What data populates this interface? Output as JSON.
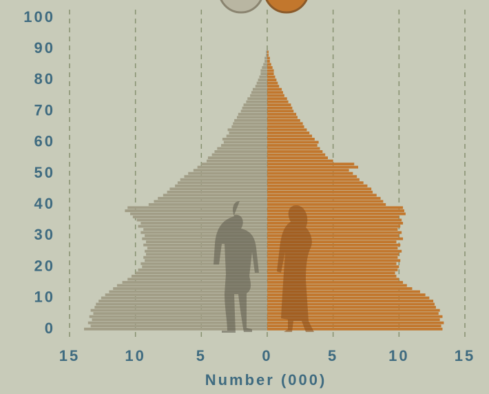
{
  "chart_data": {
    "type": "pyramid",
    "x_label": "Number (000)",
    "ages": [
      0,
      1,
      2,
      3,
      4,
      5,
      6,
      7,
      8,
      9,
      10,
      11,
      12,
      13,
      14,
      15,
      16,
      17,
      18,
      19,
      20,
      21,
      22,
      23,
      24,
      25,
      26,
      27,
      28,
      29,
      30,
      31,
      32,
      33,
      34,
      35,
      36,
      37,
      38,
      39,
      40,
      41,
      42,
      43,
      44,
      45,
      46,
      47,
      48,
      49,
      50,
      51,
      52,
      53,
      54,
      55,
      56,
      57,
      58,
      59,
      60,
      61,
      62,
      63,
      64,
      65,
      66,
      67,
      68,
      69,
      70,
      71,
      72,
      73,
      74,
      75,
      76,
      77,
      78,
      79,
      80,
      81,
      82,
      83,
      84,
      85,
      86,
      87,
      88,
      89
    ],
    "series": [
      {
        "color": "#a19d86",
        "values": [
          13.9,
          13.4,
          13.6,
          13.3,
          13.5,
          13.2,
          13.4,
          13.1,
          13.0,
          12.8,
          12.6,
          12.3,
          12.0,
          11.7,
          11.4,
          11.0,
          10.6,
          10.3,
          10.0,
          9.8,
          9.5,
          9.6,
          9.3,
          9.4,
          9.2,
          9.3,
          9.1,
          9.4,
          9.2,
          9.5,
          9.3,
          9.6,
          9.4,
          9.8,
          9.6,
          9.9,
          10.2,
          10.4,
          10.8,
          10.6,
          9.0,
          8.6,
          8.3,
          7.9,
          7.6,
          7.4,
          7.0,
          6.8,
          6.6,
          6.3,
          6.0,
          5.6,
          5.3,
          5.0,
          4.6,
          4.5,
          4.2,
          4.0,
          3.8,
          3.5,
          3.3,
          3.4,
          3.1,
          2.9,
          3.0,
          2.7,
          2.6,
          2.5,
          2.3,
          2.2,
          2.0,
          1.9,
          1.8,
          1.6,
          1.5,
          1.3,
          1.2,
          1.1,
          0.9,
          0.8,
          0.7,
          0.6,
          0.5,
          0.5,
          0.4,
          0.3,
          0.2,
          0.2,
          0.1,
          0.1
        ]
      },
      {
        "color": "#c2772d",
        "values": [
          13.3,
          13.2,
          13.4,
          13.1,
          13.3,
          13.0,
          13.1,
          12.8,
          12.7,
          12.6,
          12.3,
          12.0,
          11.6,
          11.0,
          10.6,
          10.3,
          10.0,
          9.8,
          9.7,
          9.9,
          10.0,
          9.8,
          10.1,
          9.9,
          10.0,
          10.2,
          9.9,
          10.1,
          9.8,
          10.3,
          10.0,
          10.2,
          9.9,
          10.1,
          10.3,
          10.2,
          10.0,
          10.5,
          10.4,
          10.3,
          9.0,
          8.8,
          8.6,
          8.3,
          8.0,
          7.9,
          7.6,
          7.3,
          7.0,
          6.8,
          6.5,
          6.2,
          6.9,
          6.6,
          5.0,
          4.6,
          4.4,
          4.2,
          4.0,
          3.8,
          3.9,
          3.6,
          3.4,
          3.2,
          3.0,
          2.8,
          2.7,
          2.5,
          2.3,
          2.2,
          2.0,
          1.9,
          1.8,
          1.6,
          1.5,
          1.3,
          1.2,
          1.1,
          0.9,
          0.8,
          0.7,
          0.6,
          0.5,
          0.5,
          0.4,
          0.3,
          0.2,
          0.2,
          0.1,
          0.1
        ]
      }
    ],
    "xlim": [
      -15,
      15
    ],
    "xticks": [
      {
        "value": -15,
        "label": "15"
      },
      {
        "value": -10,
        "label": "10"
      },
      {
        "value": -5,
        "label": "5"
      },
      0,
      5,
      10,
      15
    ],
    "ylim": [
      0,
      100
    ],
    "yticks": [
      0,
      10,
      20,
      30,
      40,
      50,
      60,
      70,
      80,
      90,
      100
    ],
    "grid": true
  }
}
